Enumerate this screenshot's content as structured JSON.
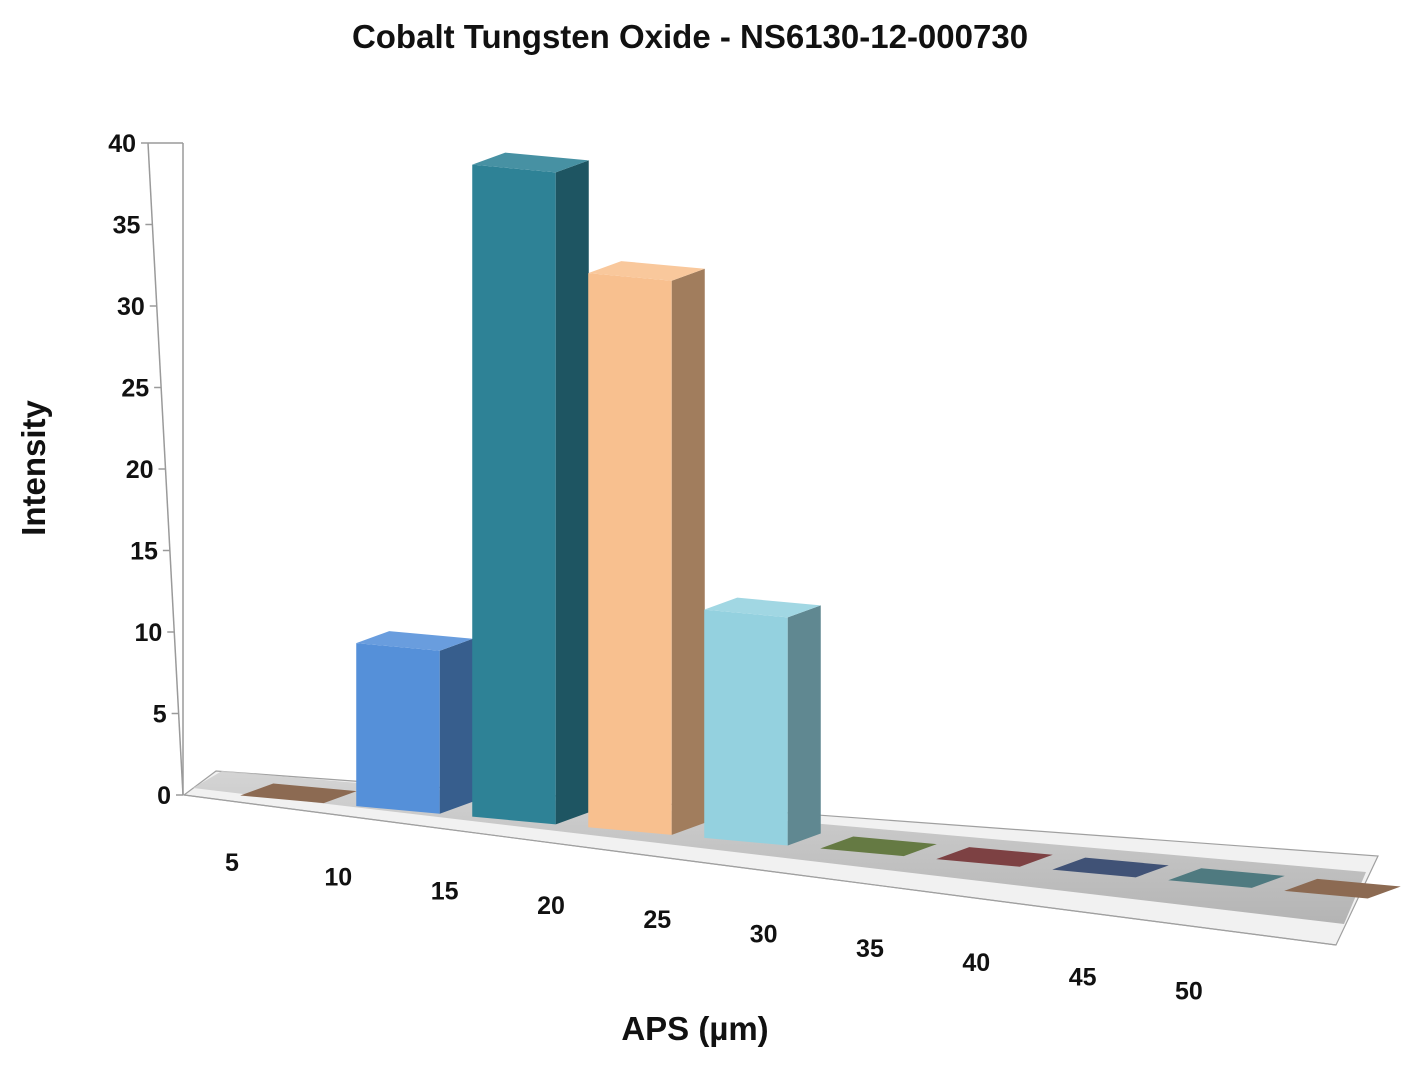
{
  "chart_data": {
    "type": "bar",
    "title": "Cobalt Tungsten Oxide - NS6130-12-000730",
    "xlabel": "APS (µm)",
    "ylabel": "Intensity",
    "categories": [
      "5",
      "10",
      "15",
      "20",
      "25",
      "30",
      "35",
      "40",
      "45",
      "50"
    ],
    "values": [
      0,
      10,
      40,
      34,
      14,
      0,
      0,
      0,
      0,
      0
    ],
    "yticks": [
      "0",
      "5",
      "10",
      "15",
      "20",
      "25",
      "30",
      "35",
      "40"
    ],
    "ylim": [
      0,
      40
    ],
    "grid": false,
    "legend": "none",
    "three_d": true,
    "colors": [
      "#8c6a52",
      "#5590d9",
      "#2e8296",
      "#f8c08f",
      "#94d1df",
      "#657a43",
      "#7d4143",
      "#405276",
      "#4f7a80",
      "#8c6a52"
    ]
  }
}
